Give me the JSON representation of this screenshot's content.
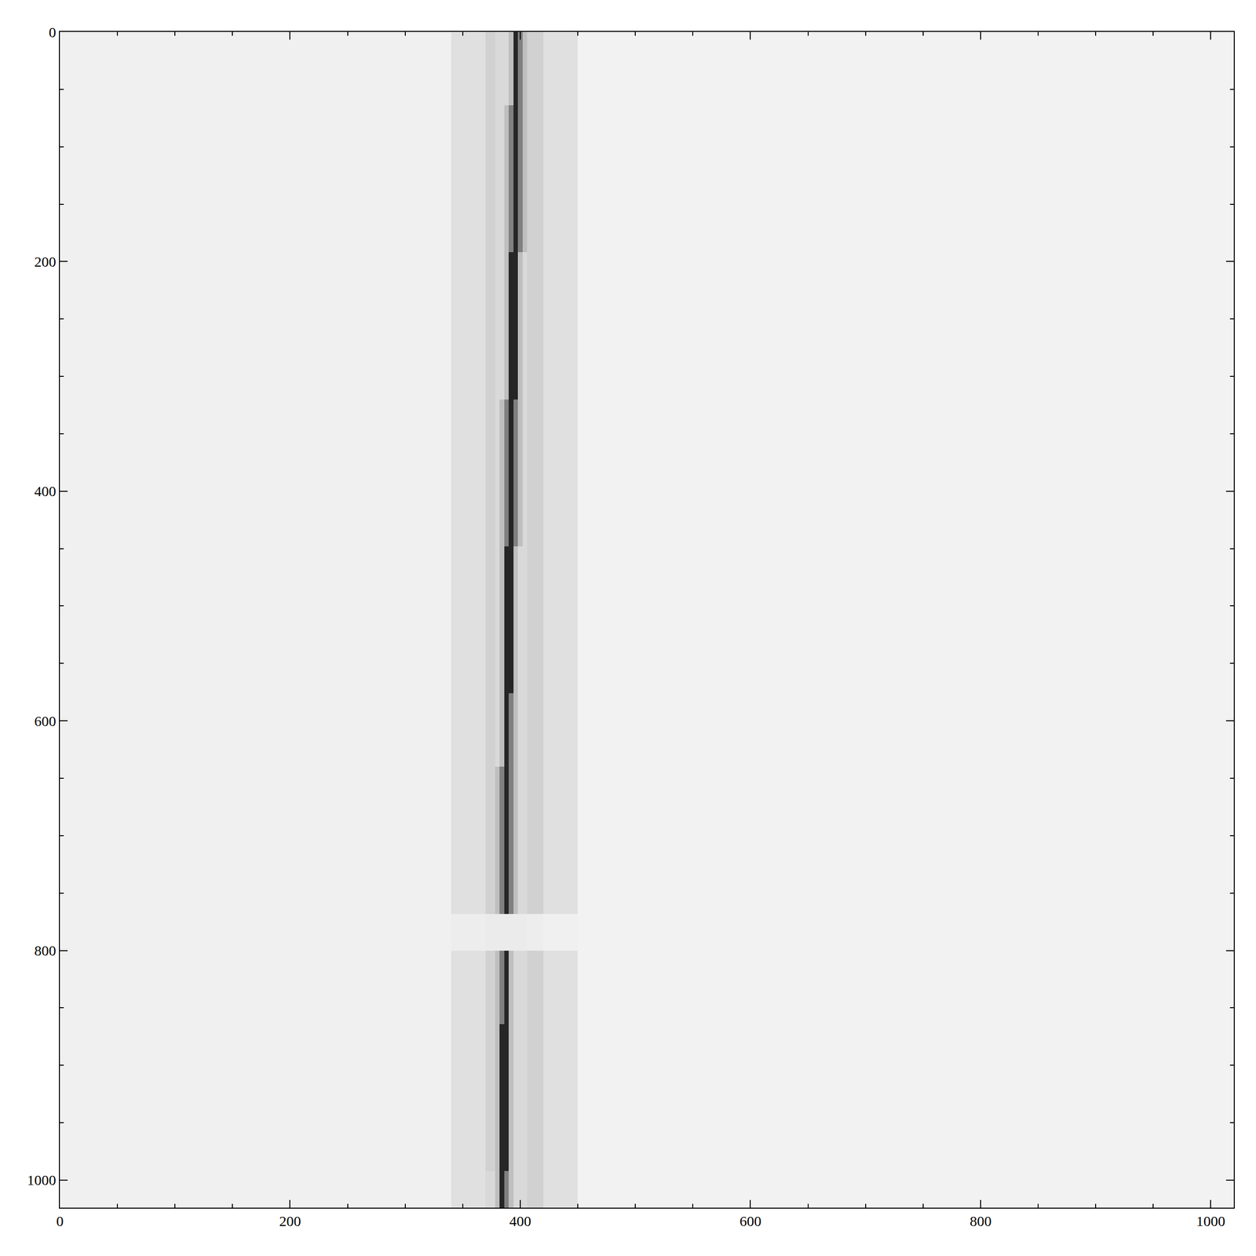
{
  "chart_data": {
    "type": "heatmap",
    "x_edges": [
      0,
      340,
      370,
      378,
      382,
      386,
      390,
      394,
      398,
      402,
      406,
      420,
      450,
      1020
    ],
    "y_edges": [
      0,
      64,
      128,
      192,
      256,
      320,
      384,
      448,
      512,
      576,
      640,
      704,
      768,
      800,
      864,
      928,
      992,
      1024
    ],
    "cells": [
      [
        0.06,
        0.12,
        0.18,
        0.15,
        0.15,
        0.15,
        0.25,
        0.85,
        0.5,
        0.25,
        0.18,
        0.12,
        0.05
      ],
      [
        0.06,
        0.12,
        0.18,
        0.15,
        0.15,
        0.25,
        0.5,
        0.85,
        0.5,
        0.25,
        0.18,
        0.12,
        0.05
      ],
      [
        0.06,
        0.12,
        0.18,
        0.15,
        0.15,
        0.25,
        0.5,
        0.85,
        0.5,
        0.25,
        0.18,
        0.12,
        0.05
      ],
      [
        0.06,
        0.12,
        0.18,
        0.15,
        0.15,
        0.25,
        0.85,
        0.85,
        0.25,
        0.15,
        0.18,
        0.12,
        0.05
      ],
      [
        0.06,
        0.12,
        0.18,
        0.15,
        0.15,
        0.25,
        0.85,
        0.85,
        0.25,
        0.15,
        0.18,
        0.12,
        0.05
      ],
      [
        0.06,
        0.12,
        0.18,
        0.15,
        0.25,
        0.5,
        0.85,
        0.5,
        0.25,
        0.15,
        0.18,
        0.12,
        0.05
      ],
      [
        0.06,
        0.12,
        0.18,
        0.15,
        0.25,
        0.5,
        0.85,
        0.5,
        0.25,
        0.15,
        0.18,
        0.12,
        0.05
      ],
      [
        0.06,
        0.12,
        0.18,
        0.15,
        0.25,
        0.85,
        0.85,
        0.25,
        0.15,
        0.15,
        0.18,
        0.12,
        0.05
      ],
      [
        0.06,
        0.12,
        0.18,
        0.15,
        0.25,
        0.85,
        0.85,
        0.25,
        0.15,
        0.15,
        0.18,
        0.12,
        0.05
      ],
      [
        0.06,
        0.12,
        0.18,
        0.15,
        0.25,
        0.85,
        0.5,
        0.25,
        0.15,
        0.15,
        0.18,
        0.12,
        0.05
      ],
      [
        0.06,
        0.12,
        0.18,
        0.25,
        0.5,
        0.85,
        0.5,
        0.25,
        0.15,
        0.15,
        0.18,
        0.12,
        0.05
      ],
      [
        0.06,
        0.12,
        0.18,
        0.25,
        0.5,
        0.85,
        0.5,
        0.25,
        0.15,
        0.15,
        0.18,
        0.12,
        0.05
      ],
      [
        0.06,
        0.07,
        0.08,
        0.08,
        0.08,
        0.08,
        0.08,
        0.08,
        0.08,
        0.08,
        0.07,
        0.06,
        0.05
      ],
      [
        0.06,
        0.12,
        0.18,
        0.25,
        0.5,
        0.85,
        0.25,
        0.15,
        0.15,
        0.15,
        0.18,
        0.12,
        0.05
      ],
      [
        0.06,
        0.12,
        0.18,
        0.25,
        0.85,
        0.85,
        0.25,
        0.15,
        0.15,
        0.15,
        0.18,
        0.12,
        0.05
      ],
      [
        0.06,
        0.12,
        0.18,
        0.25,
        0.85,
        0.85,
        0.25,
        0.15,
        0.15,
        0.15,
        0.18,
        0.12,
        0.05
      ],
      [
        0.06,
        0.12,
        0.15,
        0.25,
        0.85,
        0.5,
        0.25,
        0.15,
        0.15,
        0.15,
        0.18,
        0.12,
        0.05
      ]
    ],
    "zlim": [
      0,
      1
    ],
    "xlim": [
      0,
      1020
    ],
    "ylim": [
      1024,
      0
    ],
    "xticks": [
      0,
      200,
      400,
      600,
      800,
      1000
    ],
    "yticks": [
      0,
      200,
      400,
      600,
      800,
      1000
    ],
    "grid": false
  }
}
